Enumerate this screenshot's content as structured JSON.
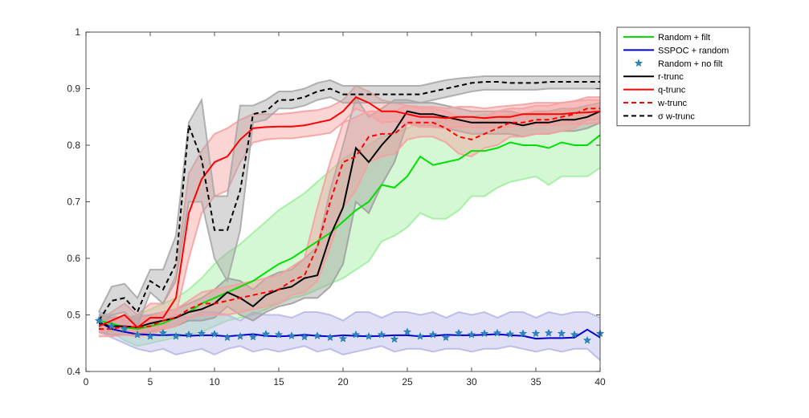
{
  "chart_data": {
    "type": "line",
    "title": "",
    "xlabel": "",
    "ylabel": "",
    "xlim": [
      0,
      40
    ],
    "ylim": [
      0.4,
      1
    ],
    "x_ticks": [
      0,
      5,
      10,
      15,
      20,
      25,
      30,
      35,
      40
    ],
    "y_ticks": [
      0.4,
      0.5,
      0.6,
      0.7,
      0.8,
      0.9,
      1
    ],
    "x_tick_labels": [
      "0",
      "5",
      "10",
      "15",
      "20",
      "25",
      "30",
      "35",
      "40"
    ],
    "y_tick_labels": [
      "0.4",
      "0.5",
      "0.6",
      "0.7",
      "0.8",
      "0.9",
      "1"
    ],
    "grid": false,
    "legend_position": "top-right, outside plot",
    "series": [
      {
        "name": "Random + filt",
        "color": "#00e000",
        "style": "solid",
        "band_color": "#9ef09e",
        "x": [
          1,
          2,
          3,
          4,
          5,
          6,
          7,
          8,
          9,
          10,
          11,
          12,
          13,
          14,
          15,
          16,
          17,
          18,
          19,
          20,
          21,
          22,
          23,
          24,
          25,
          26,
          27,
          28,
          29,
          30,
          31,
          32,
          33,
          34,
          35,
          36,
          37,
          38,
          39,
          40
        ],
        "y": [
          0.49,
          0.485,
          0.478,
          0.475,
          0.48,
          0.485,
          0.495,
          0.505,
          0.52,
          0.53,
          0.54,
          0.55,
          0.56,
          0.575,
          0.59,
          0.6,
          0.615,
          0.63,
          0.645,
          0.665,
          0.685,
          0.7,
          0.73,
          0.725,
          0.745,
          0.78,
          0.765,
          0.77,
          0.775,
          0.79,
          0.79,
          0.795,
          0.805,
          0.8,
          0.8,
          0.795,
          0.805,
          0.8,
          0.8,
          0.818
        ],
        "upper": [
          0.5,
          0.5,
          0.495,
          0.5,
          0.51,
          0.52,
          0.53,
          0.545,
          0.565,
          0.59,
          0.61,
          0.625,
          0.645,
          0.665,
          0.685,
          0.7,
          0.715,
          0.735,
          0.755,
          0.775,
          0.79,
          0.8,
          0.815,
          0.82,
          0.83,
          0.84,
          0.84,
          0.845,
          0.845,
          0.85,
          0.855,
          0.85,
          0.855,
          0.855,
          0.86,
          0.86,
          0.86,
          0.865,
          0.865,
          0.87
        ],
        "lower": [
          0.47,
          0.47,
          0.455,
          0.445,
          0.45,
          0.455,
          0.46,
          0.465,
          0.47,
          0.48,
          0.49,
          0.495,
          0.5,
          0.51,
          0.52,
          0.53,
          0.535,
          0.545,
          0.555,
          0.565,
          0.58,
          0.595,
          0.63,
          0.64,
          0.655,
          0.68,
          0.67,
          0.67,
          0.685,
          0.71,
          0.71,
          0.725,
          0.735,
          0.74,
          0.745,
          0.73,
          0.745,
          0.745,
          0.745,
          0.76
        ]
      },
      {
        "name": "SSPOC + random",
        "color": "#0000cc",
        "style": "solid",
        "band_color": "#b8b8e8",
        "x": [
          1,
          2,
          3,
          4,
          5,
          6,
          7,
          8,
          9,
          10,
          11,
          12,
          13,
          14,
          15,
          16,
          17,
          18,
          19,
          20,
          21,
          22,
          23,
          24,
          25,
          26,
          27,
          28,
          29,
          30,
          31,
          32,
          33,
          34,
          35,
          36,
          37,
          38,
          39,
          40
        ],
        "y": [
          0.488,
          0.475,
          0.47,
          0.466,
          0.465,
          0.464,
          0.465,
          0.463,
          0.464,
          0.464,
          0.462,
          0.464,
          0.466,
          0.463,
          0.462,
          0.463,
          0.465,
          0.463,
          0.462,
          0.464,
          0.463,
          0.462,
          0.463,
          0.464,
          0.464,
          0.462,
          0.463,
          0.465,
          0.464,
          0.464,
          0.465,
          0.466,
          0.464,
          0.463,
          0.458,
          0.459,
          0.459,
          0.46,
          0.474,
          0.46
        ],
        "upper": [
          0.505,
          0.5,
          0.49,
          0.5,
          0.5,
          0.49,
          0.5,
          0.495,
          0.505,
          0.505,
          0.5,
          0.49,
          0.505,
          0.5,
          0.5,
          0.495,
          0.505,
          0.505,
          0.5,
          0.49,
          0.505,
          0.505,
          0.495,
          0.505,
          0.505,
          0.5,
          0.505,
          0.495,
          0.505,
          0.5,
          0.505,
          0.495,
          0.505,
          0.505,
          0.495,
          0.505,
          0.5,
          0.505,
          0.505,
          0.495
        ],
        "lower": [
          0.47,
          0.46,
          0.45,
          0.44,
          0.435,
          0.44,
          0.43,
          0.435,
          0.44,
          0.43,
          0.44,
          0.445,
          0.435,
          0.44,
          0.435,
          0.44,
          0.445,
          0.435,
          0.44,
          0.43,
          0.435,
          0.44,
          0.445,
          0.435,
          0.44,
          0.44,
          0.435,
          0.44,
          0.44,
          0.435,
          0.44,
          0.44,
          0.445,
          0.44,
          0.435,
          0.44,
          0.435,
          0.44,
          0.44,
          0.42
        ]
      },
      {
        "name": "Random + no filt",
        "color": "#2e86c1",
        "style": "markers",
        "marker": "star",
        "x": [
          1,
          2,
          3,
          4,
          5,
          6,
          7,
          8,
          9,
          10,
          11,
          12,
          13,
          14,
          15,
          16,
          17,
          18,
          19,
          20,
          21,
          22,
          23,
          24,
          25,
          26,
          27,
          28,
          29,
          30,
          31,
          32,
          33,
          34,
          35,
          36,
          37,
          38,
          39,
          40
        ],
        "y": [
          0.49,
          0.48,
          0.475,
          0.465,
          0.462,
          0.468,
          0.462,
          0.465,
          0.467,
          0.466,
          0.46,
          0.462,
          0.461,
          0.466,
          0.465,
          0.463,
          0.461,
          0.463,
          0.46,
          0.458,
          0.465,
          0.462,
          0.465,
          0.457,
          0.47,
          0.462,
          0.465,
          0.46,
          0.468,
          0.465,
          0.467,
          0.468,
          0.466,
          0.467,
          0.467,
          0.468,
          0.467,
          0.465,
          0.455,
          0.467
        ]
      },
      {
        "name": "r-trunc",
        "color": "#000000",
        "style": "solid",
        "band_color": "#a0a0a0",
        "x": [
          1,
          2,
          3,
          4,
          5,
          6,
          7,
          8,
          9,
          10,
          11,
          12,
          13,
          14,
          15,
          16,
          17,
          18,
          19,
          20,
          21,
          22,
          23,
          24,
          25,
          26,
          27,
          28,
          29,
          30,
          31,
          32,
          33,
          34,
          35,
          36,
          37,
          38,
          39,
          40
        ],
        "y": [
          0.485,
          0.48,
          0.48,
          0.478,
          0.485,
          0.49,
          0.495,
          0.505,
          0.51,
          0.52,
          0.54,
          0.53,
          0.515,
          0.535,
          0.545,
          0.55,
          0.565,
          0.57,
          0.64,
          0.69,
          0.795,
          0.77,
          0.8,
          0.825,
          0.86,
          0.855,
          0.855,
          0.85,
          0.845,
          0.84,
          0.84,
          0.84,
          0.84,
          0.835,
          0.84,
          0.84,
          0.845,
          0.845,
          0.85,
          0.86
        ],
        "upper": [
          0.5,
          0.495,
          0.495,
          0.495,
          0.5,
          0.505,
          0.51,
          0.52,
          0.53,
          0.545,
          0.565,
          0.56,
          0.545,
          0.565,
          0.575,
          0.58,
          0.6,
          0.62,
          0.72,
          0.8,
          0.885,
          0.85,
          0.865,
          0.88,
          0.88,
          0.875,
          0.875,
          0.87,
          0.865,
          0.86,
          0.86,
          0.86,
          0.86,
          0.855,
          0.86,
          0.86,
          0.865,
          0.865,
          0.87,
          0.875
        ],
        "lower": [
          0.47,
          0.465,
          0.465,
          0.465,
          0.47,
          0.475,
          0.48,
          0.49,
          0.49,
          0.495,
          0.515,
          0.5,
          0.49,
          0.505,
          0.515,
          0.52,
          0.53,
          0.53,
          0.55,
          0.59,
          0.7,
          0.68,
          0.73,
          0.77,
          0.84,
          0.835,
          0.835,
          0.83,
          0.825,
          0.82,
          0.82,
          0.82,
          0.82,
          0.815,
          0.82,
          0.82,
          0.825,
          0.825,
          0.83,
          0.84
        ]
      },
      {
        "name": "q-trunc",
        "color": "#ff0000",
        "style": "solid",
        "band_color": "#f6a0a0",
        "x": [
          1,
          2,
          3,
          4,
          5,
          6,
          7,
          8,
          9,
          10,
          11,
          12,
          13,
          14,
          15,
          16,
          17,
          18,
          19,
          20,
          21,
          22,
          23,
          24,
          25,
          26,
          27,
          28,
          29,
          30,
          31,
          32,
          33,
          34,
          35,
          36,
          37,
          38,
          39,
          40
        ],
        "y": [
          0.48,
          0.49,
          0.5,
          0.478,
          0.495,
          0.495,
          0.53,
          0.68,
          0.74,
          0.77,
          0.78,
          0.81,
          0.83,
          0.832,
          0.833,
          0.833,
          0.835,
          0.84,
          0.845,
          0.86,
          0.885,
          0.875,
          0.86,
          0.86,
          0.855,
          0.85,
          0.85,
          0.848,
          0.85,
          0.85,
          0.848,
          0.85,
          0.85,
          0.855,
          0.855,
          0.855,
          0.855,
          0.857,
          0.858,
          0.86
        ],
        "upper": [
          0.49,
          0.505,
          0.52,
          0.5,
          0.52,
          0.52,
          0.57,
          0.75,
          0.79,
          0.82,
          0.83,
          0.845,
          0.855,
          0.855,
          0.855,
          0.857,
          0.86,
          0.862,
          0.868,
          0.88,
          0.905,
          0.895,
          0.88,
          0.875,
          0.87,
          0.868,
          0.868,
          0.865,
          0.868,
          0.868,
          0.865,
          0.868,
          0.87,
          0.872,
          0.875,
          0.875,
          0.875,
          0.878,
          0.88,
          0.88
        ],
        "lower": [
          0.47,
          0.475,
          0.48,
          0.465,
          0.475,
          0.475,
          0.5,
          0.6,
          0.68,
          0.71,
          0.72,
          0.77,
          0.805,
          0.81,
          0.812,
          0.812,
          0.815,
          0.818,
          0.822,
          0.84,
          0.865,
          0.855,
          0.84,
          0.842,
          0.838,
          0.832,
          0.832,
          0.83,
          0.832,
          0.832,
          0.83,
          0.832,
          0.832,
          0.836,
          0.836,
          0.836,
          0.836,
          0.838,
          0.838,
          0.84
        ]
      },
      {
        "name": "w-trunc",
        "color": "#ff0000",
        "style": "dashed",
        "band_color": "#f6a0a0",
        "x": [
          1,
          2,
          3,
          4,
          5,
          6,
          7,
          8,
          9,
          10,
          11,
          12,
          13,
          14,
          15,
          16,
          17,
          18,
          19,
          20,
          21,
          22,
          23,
          24,
          25,
          26,
          27,
          28,
          29,
          30,
          31,
          32,
          33,
          34,
          35,
          36,
          37,
          38,
          39,
          40
        ],
        "y": [
          0.475,
          0.475,
          0.48,
          0.478,
          0.48,
          0.49,
          0.495,
          0.51,
          0.52,
          0.52,
          0.525,
          0.53,
          0.535,
          0.54,
          0.545,
          0.56,
          0.57,
          0.62,
          0.7,
          0.77,
          0.78,
          0.815,
          0.82,
          0.82,
          0.84,
          0.84,
          0.84,
          0.83,
          0.815,
          0.81,
          0.82,
          0.83,
          0.84,
          0.84,
          0.845,
          0.845,
          0.85,
          0.855,
          0.865,
          0.865
        ],
        "upper": [
          0.49,
          0.49,
          0.495,
          0.495,
          0.495,
          0.505,
          0.51,
          0.525,
          0.54,
          0.545,
          0.55,
          0.555,
          0.56,
          0.565,
          0.57,
          0.585,
          0.6,
          0.69,
          0.77,
          0.84,
          0.85,
          0.86,
          0.86,
          0.86,
          0.87,
          0.865,
          0.865,
          0.86,
          0.85,
          0.845,
          0.85,
          0.86,
          0.865,
          0.865,
          0.87,
          0.87,
          0.875,
          0.878,
          0.885,
          0.885
        ],
        "lower": [
          0.462,
          0.462,
          0.465,
          0.462,
          0.465,
          0.475,
          0.48,
          0.495,
          0.5,
          0.5,
          0.5,
          0.505,
          0.51,
          0.515,
          0.52,
          0.535,
          0.54,
          0.56,
          0.62,
          0.69,
          0.72,
          0.77,
          0.78,
          0.785,
          0.81,
          0.815,
          0.815,
          0.805,
          0.785,
          0.78,
          0.795,
          0.8,
          0.815,
          0.815,
          0.82,
          0.82,
          0.825,
          0.83,
          0.845,
          0.845
        ]
      },
      {
        "name": "σ w-trunc",
        "color": "#000000",
        "style": "dashed",
        "band_color": "#a8a8a8",
        "x": [
          1,
          2,
          3,
          4,
          5,
          6,
          7,
          8,
          9,
          10,
          11,
          12,
          13,
          14,
          15,
          16,
          17,
          18,
          19,
          20,
          21,
          22,
          23,
          24,
          25,
          26,
          27,
          28,
          29,
          30,
          31,
          32,
          33,
          34,
          35,
          36,
          37,
          38,
          39,
          40
        ],
        "y": [
          0.49,
          0.525,
          0.53,
          0.505,
          0.56,
          0.545,
          0.59,
          0.835,
          0.775,
          0.65,
          0.65,
          0.72,
          0.855,
          0.86,
          0.88,
          0.88,
          0.885,
          0.895,
          0.9,
          0.89,
          0.89,
          0.89,
          0.89,
          0.89,
          0.89,
          0.89,
          0.895,
          0.9,
          0.905,
          0.91,
          0.912,
          0.912,
          0.91,
          0.91,
          0.91,
          0.912,
          0.912,
          0.912,
          0.912,
          0.912
        ],
        "upper": [
          0.505,
          0.55,
          0.555,
          0.53,
          0.58,
          0.58,
          0.64,
          0.84,
          0.88,
          0.71,
          0.71,
          0.87,
          0.87,
          0.88,
          0.895,
          0.895,
          0.9,
          0.91,
          0.915,
          0.905,
          0.905,
          0.905,
          0.905,
          0.905,
          0.905,
          0.905,
          0.91,
          0.915,
          0.918,
          0.92,
          0.922,
          0.922,
          0.922,
          0.922,
          0.922,
          0.922,
          0.922,
          0.922,
          0.922,
          0.922
        ],
        "lower": [
          0.475,
          0.5,
          0.505,
          0.48,
          0.54,
          0.52,
          0.56,
          0.7,
          0.7,
          0.6,
          0.56,
          0.65,
          0.84,
          0.845,
          0.865,
          0.865,
          0.87,
          0.88,
          0.885,
          0.875,
          0.875,
          0.875,
          0.875,
          0.875,
          0.875,
          0.875,
          0.88,
          0.885,
          0.89,
          0.895,
          0.898,
          0.898,
          0.898,
          0.898,
          0.898,
          0.9,
          0.9,
          0.9,
          0.9,
          0.9
        ]
      }
    ]
  }
}
